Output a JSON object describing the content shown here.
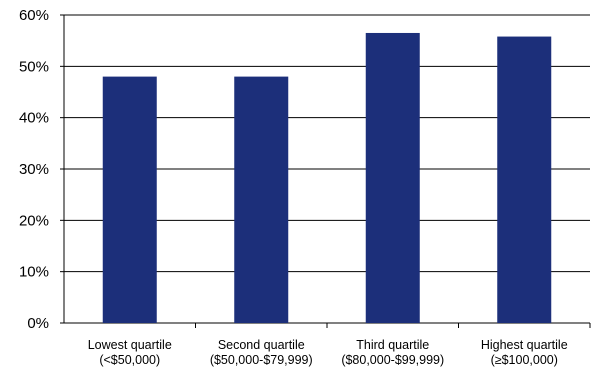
{
  "chart_data": {
    "type": "bar",
    "categories": [
      [
        "Lowest quartile",
        "(<$50,000)"
      ],
      [
        "Second quartile",
        "($50,000-$79,999)"
      ],
      [
        "Third quartile",
        "($80,000-$99,999)"
      ],
      [
        "Highest quartile",
        "(≥$100,000)"
      ]
    ],
    "values": [
      48,
      48,
      56.5,
      55.8
    ],
    "title": "",
    "xlabel": "",
    "ylabel": "",
    "ylim": [
      0,
      60
    ],
    "yticks": [
      0,
      10,
      20,
      30,
      40,
      50,
      60
    ],
    "ytick_labels": [
      "0%",
      "10%",
      "20%",
      "30%",
      "40%",
      "50%",
      "60%"
    ],
    "grid": "horizontal",
    "legend": "none",
    "colors": {
      "bar": "#1c2f7a",
      "grid": "#000000",
      "background": "#ffffff"
    }
  }
}
